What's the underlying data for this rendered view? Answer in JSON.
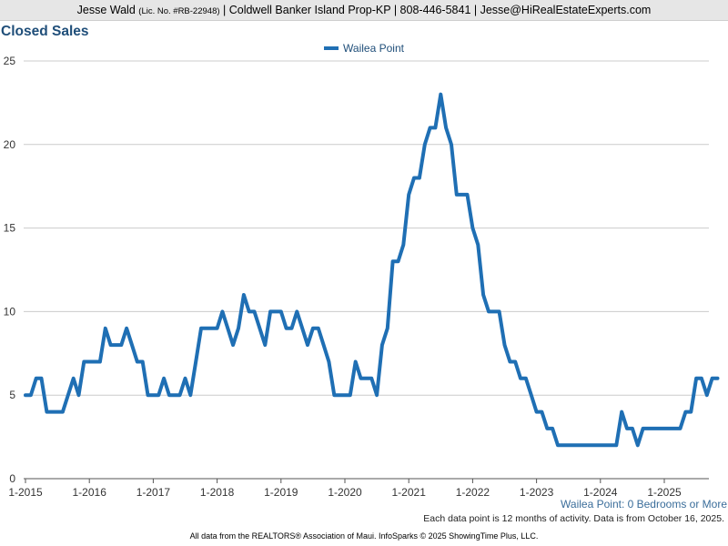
{
  "header": {
    "agent": "Jesse Wald",
    "license": "(Lic. No. #RB-22948)",
    "details": "| Coldwell Banker Island Prop-KP | 808-446-5841 | Jesse@HiRealEstateExperts.com"
  },
  "colors": {
    "line": "#1f6fb4",
    "title": "#1f4e79",
    "grid": "#cccccc"
  },
  "chart_data": {
    "type": "line",
    "title": "Closed Sales",
    "legend_position": "top-center",
    "grid": true,
    "x_start": "2015-01",
    "x_ticks": [
      "1-2015",
      "1-2016",
      "1-2017",
      "1-2018",
      "1-2019",
      "1-2020",
      "1-2021",
      "1-2022",
      "1-2023",
      "1-2024",
      "1-2025"
    ],
    "y_ticks": [
      0,
      5,
      10,
      15,
      20,
      25
    ],
    "ylim": [
      0,
      25
    ],
    "series": [
      {
        "name": "Wailea Point",
        "values": [
          5,
          5,
          6,
          6,
          4,
          4,
          4,
          4,
          5,
          6,
          5,
          7,
          7,
          7,
          7,
          9,
          8,
          8,
          8,
          9,
          8,
          7,
          7,
          5,
          5,
          5,
          6,
          5,
          5,
          5,
          6,
          5,
          7,
          9,
          9,
          9,
          9,
          10,
          9,
          8,
          9,
          11,
          10,
          10,
          9,
          8,
          10,
          10,
          10,
          9,
          9,
          10,
          9,
          8,
          9,
          9,
          8,
          7,
          5,
          5,
          5,
          5,
          7,
          6,
          6,
          6,
          5,
          8,
          9,
          13,
          13,
          14,
          17,
          18,
          18,
          20,
          21,
          21,
          23,
          21,
          20,
          17,
          17,
          17,
          15,
          14,
          11,
          10,
          10,
          10,
          8,
          7,
          7,
          6,
          6,
          5,
          4,
          4,
          3,
          3,
          2,
          2,
          2,
          2,
          2,
          2,
          2,
          2,
          2,
          2,
          2,
          2,
          4,
          3,
          3,
          2,
          3,
          3,
          3,
          3,
          3,
          3,
          3,
          3,
          4,
          4,
          6,
          6,
          5,
          6,
          6
        ]
      }
    ]
  },
  "subtitle": "Wailea Point: 0 Bedrooms or More",
  "note": "Each data point is 12 months of activity. Data is from October 16, 2025.",
  "footer": "All data from the REALTORS® Association of Maui. InfoSparks © 2025 ShowingTime Plus, LLC."
}
